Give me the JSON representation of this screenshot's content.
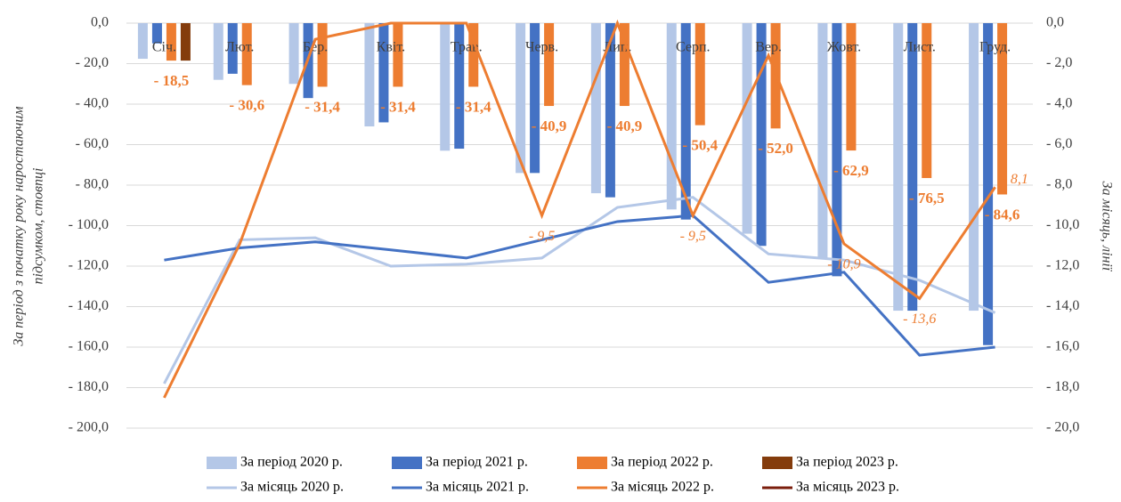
{
  "chart_data": {
    "type": "combo",
    "ylabel": [
      "За період з початку року наростаючим",
      "підсумком, стовпці"
    ],
    "y2label": "За місяць, лінії",
    "categories": [
      "Січ.",
      "Лют.",
      "Бер.",
      "Квіт.",
      "Трав.",
      "Черв.",
      "Лип.",
      "Серп.",
      "Вер.",
      "Жовт.",
      "Лист.",
      "Груд."
    ],
    "ylim": [
      -200,
      0
    ],
    "yticks": [
      {
        "value": 0,
        "label": "0,0"
      },
      {
        "value": -20,
        "label": "- 20,0"
      },
      {
        "value": -40,
        "label": "- 40,0"
      },
      {
        "value": -60,
        "label": "- 60,0"
      },
      {
        "value": -80,
        "label": "- 80,0"
      },
      {
        "value": -100,
        "label": "- 100,0"
      },
      {
        "value": -120,
        "label": "- 120,0"
      },
      {
        "value": -140,
        "label": "- 140,0"
      },
      {
        "value": -160,
        "label": "- 160,0"
      },
      {
        "value": -180,
        "label": "- 180,0"
      },
      {
        "value": -200,
        "label": "- 200,0"
      }
    ],
    "y2lim": [
      -20,
      0
    ],
    "y2ticks": [
      {
        "value": 0,
        "label": "0,0"
      },
      {
        "value": -2,
        "label": "- 2,0"
      },
      {
        "value": -4,
        "label": "- 4,0"
      },
      {
        "value": -6,
        "label": "- 6,0"
      },
      {
        "value": -8,
        "label": "- 8,0"
      },
      {
        "value": -10,
        "label": "- 10,0"
      },
      {
        "value": -12,
        "label": "- 12,0"
      },
      {
        "value": -14,
        "label": "- 14,0"
      },
      {
        "value": -16,
        "label": "- 16,0"
      },
      {
        "value": -18,
        "label": "- 18,0"
      },
      {
        "value": -20,
        "label": "- 20,0"
      }
    ],
    "grid": true,
    "series": [
      {
        "name": "За період  2020 р.",
        "type": "bar",
        "color": "#b4c7e7",
        "values": [
          -17.6,
          -28,
          -30,
          -51,
          -63,
          -74,
          -84,
          -92,
          -104,
          -116,
          -142,
          -142
        ]
      },
      {
        "name": "За період  2021 р.",
        "type": "bar",
        "color": "#4472c4",
        "values": [
          -10,
          -25,
          -37,
          -49,
          -62,
          -74,
          -86,
          -97,
          -110,
          -125,
          -142,
          -159
        ]
      },
      {
        "name": "За період  2022 р.",
        "type": "bar",
        "color": "#ed7d31",
        "values": [
          -18.5,
          -30.6,
          -31.4,
          -31.4,
          -31.4,
          -40.9,
          -40.9,
          -50.4,
          -52.0,
          -62.9,
          -76.5,
          -84.6
        ],
        "value_labels": [
          "- 18,5",
          "- 30,6",
          "- 31,4",
          "- 31,4",
          "- 31,4",
          "- 40,9",
          "- 40,9",
          "- 50,4",
          "- 52,0",
          "- 62,9",
          "- 76,5",
          "- 84,6"
        ]
      },
      {
        "name": "За період  2023 р.",
        "type": "bar",
        "color": "#843c0c",
        "values": [
          -18.5,
          null,
          null,
          null,
          null,
          null,
          null,
          null,
          null,
          null,
          null,
          null
        ]
      },
      {
        "name": "За місяць  2020 р.",
        "type": "line",
        "axis": "y2",
        "color": "#b4c7e7",
        "values": [
          -17.8,
          -10.7,
          -10.6,
          -12.0,
          -11.9,
          -11.6,
          -9.1,
          -8.6,
          -11.4,
          -11.7,
          -12.7,
          -14.3
        ]
      },
      {
        "name": "За місяць  2021 р.",
        "type": "line",
        "axis": "y2",
        "color": "#4472c4",
        "values": [
          -11.7,
          -11.1,
          -10.8,
          -11.2,
          -11.6,
          -10.7,
          -9.8,
          -9.5,
          -12.8,
          -12.3,
          -16.4,
          -16.0
        ]
      },
      {
        "name": "За місяць  2022 р.",
        "type": "line",
        "axis": "y2",
        "color": "#ed7d31",
        "values": [
          -18.5,
          -10.9,
          -0.8,
          0,
          0,
          -9.5,
          0,
          -9.5,
          -1.6,
          -10.9,
          -13.6,
          -8.1
        ],
        "value_labels": [
          null,
          null,
          null,
          null,
          null,
          "- 9,5",
          null,
          "- 9,5",
          null,
          "- 10,9",
          "- 13,6",
          "- 8,1"
        ]
      },
      {
        "name": "За місяць  2023 р.",
        "type": "line",
        "axis": "y2",
        "color": "#7b1e0c",
        "values": [
          null,
          null,
          null,
          null,
          null,
          null,
          null,
          null,
          null,
          null,
          null,
          null
        ]
      }
    ]
  }
}
